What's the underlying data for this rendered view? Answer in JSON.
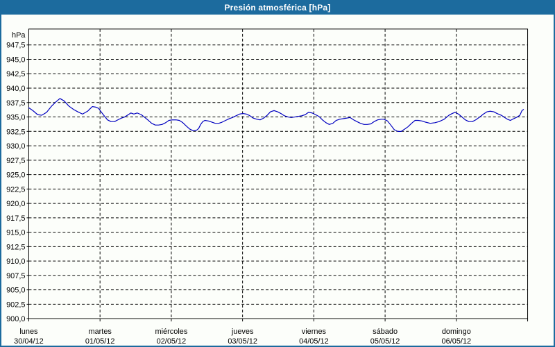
{
  "window": {
    "title": "Presión atmosférica [hPa]"
  },
  "colors": {
    "chrome_blue": "#1C6B9E",
    "title_text": "#FFFFFF",
    "window_bg": "#FCFEFA",
    "grid": "#000000",
    "label_text": "#000000",
    "line_blue": "#0000C0"
  },
  "chart_data": {
    "type": "line",
    "title": "Presión atmosférica [hPa]",
    "unit_label": "hPa",
    "grid": "dashed",
    "legend": "none",
    "ylim": [
      900.0,
      950.0
    ],
    "ytick_step": 2.5,
    "yticks": [
      947.5,
      945.0,
      942.5,
      940.0,
      937.5,
      935.0,
      932.5,
      930.0,
      927.5,
      925.0,
      922.5,
      920.0,
      917.5,
      915.0,
      912.5,
      910.0,
      907.5,
      905.0,
      902.5,
      900.0
    ],
    "ytick_labels": [
      "947,5",
      "945,0",
      "942,5",
      "940,0",
      "937,5",
      "935,0",
      "932,5",
      "930,0",
      "927,5",
      "925,0",
      "922,5",
      "920,0",
      "917,5",
      "915,0",
      "912,5",
      "910,0",
      "907,5",
      "905,0",
      "902,5",
      "900,0"
    ],
    "x_days": [
      {
        "name": "lunes",
        "date": "30/04/12"
      },
      {
        "name": "martes",
        "date": "01/05/12"
      },
      {
        "name": "miércoles",
        "date": "02/05/12"
      },
      {
        "name": "jueves",
        "date": "03/05/12"
      },
      {
        "name": "viernes",
        "date": "04/05/12"
      },
      {
        "name": "sábado",
        "date": "05/05/12"
      },
      {
        "name": "domingo",
        "date": "06/05/12"
      }
    ],
    "x_unit": "hours_since_monday_00h",
    "series": [
      {
        "name": "Presión atmosférica",
        "points": [
          [
            0.0,
            936.6
          ],
          [
            1.4,
            936.1
          ],
          [
            3.0,
            935.4
          ],
          [
            4.4,
            935.3
          ],
          [
            6.0,
            935.8
          ],
          [
            7.7,
            936.9
          ],
          [
            9.1,
            937.6
          ],
          [
            10.5,
            938.2
          ],
          [
            11.9,
            937.8
          ],
          [
            13.5,
            936.9
          ],
          [
            15.1,
            936.3
          ],
          [
            16.5,
            935.9
          ],
          [
            18.1,
            935.5
          ],
          [
            19.8,
            936.0
          ],
          [
            21.4,
            936.8
          ],
          [
            22.6,
            936.7
          ],
          [
            23.5,
            936.5
          ],
          [
            24.2,
            936.0
          ],
          [
            25.4,
            935.2
          ],
          [
            26.5,
            934.5
          ],
          [
            27.7,
            934.2
          ],
          [
            28.9,
            934.2
          ],
          [
            30.0,
            934.5
          ],
          [
            31.2,
            934.8
          ],
          [
            32.3,
            935.0
          ],
          [
            33.5,
            935.4
          ],
          [
            34.4,
            935.7
          ],
          [
            35.4,
            935.5
          ],
          [
            36.5,
            935.7
          ],
          [
            37.9,
            935.4
          ],
          [
            39.1,
            934.9
          ],
          [
            40.3,
            934.4
          ],
          [
            41.4,
            933.9
          ],
          [
            42.6,
            933.6
          ],
          [
            43.7,
            933.6
          ],
          [
            44.9,
            933.7
          ],
          [
            46.1,
            934.0
          ],
          [
            47.2,
            934.4
          ],
          [
            48.4,
            934.5
          ],
          [
            49.6,
            934.5
          ],
          [
            50.7,
            934.4
          ],
          [
            51.9,
            934.0
          ],
          [
            53.1,
            933.4
          ],
          [
            54.2,
            932.9
          ],
          [
            55.4,
            932.6
          ],
          [
            56.5,
            932.7
          ],
          [
            57.2,
            933.0
          ],
          [
            57.9,
            933.7
          ],
          [
            58.6,
            934.2
          ],
          [
            59.3,
            934.4
          ],
          [
            60.5,
            934.3
          ],
          [
            61.7,
            934.1
          ],
          [
            62.8,
            933.9
          ],
          [
            64.0,
            933.9
          ],
          [
            65.1,
            934.1
          ],
          [
            66.3,
            934.4
          ],
          [
            67.5,
            934.7
          ],
          [
            68.6,
            934.9
          ],
          [
            69.8,
            935.2
          ],
          [
            71.0,
            935.5
          ],
          [
            72.1,
            935.6
          ],
          [
            73.3,
            935.5
          ],
          [
            74.5,
            935.2
          ],
          [
            75.6,
            934.8
          ],
          [
            76.8,
            934.6
          ],
          [
            77.9,
            934.5
          ],
          [
            79.1,
            934.8
          ],
          [
            80.3,
            935.3
          ],
          [
            81.4,
            935.9
          ],
          [
            82.6,
            936.1
          ],
          [
            83.8,
            935.9
          ],
          [
            84.9,
            935.6
          ],
          [
            86.1,
            935.2
          ],
          [
            87.3,
            935.0
          ],
          [
            88.4,
            934.9
          ],
          [
            89.6,
            935.0
          ],
          [
            90.7,
            935.1
          ],
          [
            91.9,
            935.2
          ],
          [
            93.1,
            935.4
          ],
          [
            94.2,
            935.8
          ],
          [
            95.4,
            935.7
          ],
          [
            96.6,
            935.4
          ],
          [
            97.7,
            935.1
          ],
          [
            98.9,
            934.5
          ],
          [
            100.1,
            934.0
          ],
          [
            101.2,
            933.7
          ],
          [
            102.4,
            933.9
          ],
          [
            103.5,
            934.4
          ],
          [
            104.7,
            934.6
          ],
          [
            105.9,
            934.7
          ],
          [
            107.0,
            934.8
          ],
          [
            108.2,
            934.9
          ],
          [
            109.4,
            934.5
          ],
          [
            110.5,
            934.2
          ],
          [
            111.7,
            933.9
          ],
          [
            112.9,
            933.7
          ],
          [
            114.0,
            933.7
          ],
          [
            115.2,
            933.8
          ],
          [
            116.3,
            934.2
          ],
          [
            117.5,
            934.5
          ],
          [
            118.7,
            934.6
          ],
          [
            119.6,
            934.6
          ],
          [
            120.8,
            934.3
          ],
          [
            121.9,
            933.6
          ],
          [
            123.1,
            932.8
          ],
          [
            124.3,
            932.5
          ],
          [
            125.4,
            932.5
          ],
          [
            126.6,
            932.9
          ],
          [
            127.7,
            933.3
          ],
          [
            128.9,
            933.9
          ],
          [
            130.1,
            934.4
          ],
          [
            131.2,
            934.4
          ],
          [
            132.4,
            934.3
          ],
          [
            133.6,
            934.1
          ],
          [
            135.2,
            933.9
          ],
          [
            136.8,
            934.0
          ],
          [
            138.2,
            934.2
          ],
          [
            139.9,
            934.6
          ],
          [
            141.5,
            935.3
          ],
          [
            142.6,
            935.6
          ],
          [
            143.6,
            935.8
          ],
          [
            144.7,
            935.5
          ],
          [
            145.9,
            935.0
          ],
          [
            147.0,
            934.5
          ],
          [
            148.2,
            934.2
          ],
          [
            149.4,
            934.2
          ],
          [
            150.5,
            934.5
          ],
          [
            151.9,
            935.0
          ],
          [
            153.1,
            935.5
          ],
          [
            154.3,
            935.9
          ],
          [
            155.4,
            936.0
          ],
          [
            156.6,
            935.9
          ],
          [
            157.7,
            935.6
          ],
          [
            159.1,
            935.3
          ],
          [
            160.3,
            934.9
          ],
          [
            161.2,
            934.6
          ],
          [
            162.2,
            934.4
          ],
          [
            163.3,
            934.7
          ],
          [
            164.5,
            935.0
          ],
          [
            165.4,
            935.3
          ],
          [
            166.1,
            936.1
          ],
          [
            166.6,
            936.3
          ]
        ]
      }
    ]
  }
}
